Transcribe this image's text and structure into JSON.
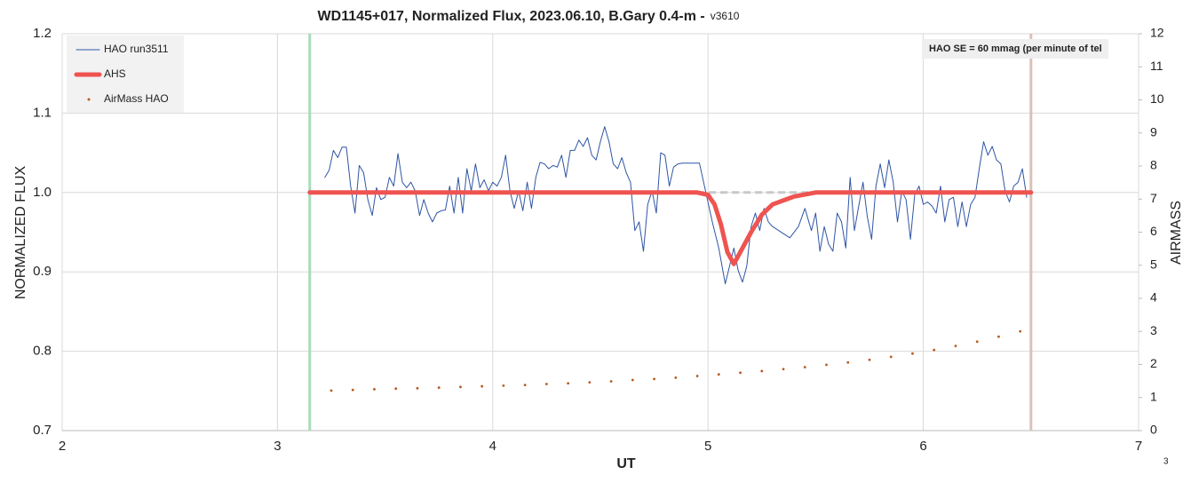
{
  "chart_data": {
    "type": "line",
    "title": "WD1145+017, Normalized Flux, 2023.06.10, B.Gary 0.4-m -",
    "version": "v3610",
    "x_label": "UT",
    "y_label": "NORMALIZED FLUX",
    "y2_label": "AIRMASS",
    "annotation": "HAO SE = 60 mmag (per minute of tel",
    "page_number": "3",
    "xlim": [
      2,
      7
    ],
    "xticks": [
      2,
      3,
      4,
      5,
      6,
      7
    ],
    "ylim": [
      0.7,
      1.2
    ],
    "yticks": [
      0.7,
      0.8,
      0.9,
      {
        "value": 1,
        "label": "1.0"
      },
      1.1,
      1.2
    ],
    "y2lim": [
      0,
      12
    ],
    "y2ticks": [
      0,
      1,
      2,
      3,
      4,
      5,
      6,
      7,
      8,
      9,
      10,
      11,
      12
    ],
    "grid": true,
    "legend": "top-left",
    "vlines": [
      {
        "x": 3.15,
        "color": "#a9dbbb"
      },
      {
        "x": 6.5,
        "color": "#dcc0b8"
      }
    ],
    "reference_line": {
      "x": [
        4.95,
        5.55
      ],
      "y": [
        1,
        1
      ],
      "color": "#c8c8c8"
    },
    "series": [
      {
        "name": "HAO run3511",
        "color": "#2f55a4",
        "style": "line",
        "width": 1,
        "x": [
          3.22,
          3.24,
          3.26,
          3.28,
          3.3,
          3.32,
          3.34,
          3.36,
          3.38,
          3.4,
          3.42,
          3.44,
          3.46,
          3.48,
          3.5,
          3.52,
          3.54,
          3.56,
          3.58,
          3.6,
          3.62,
          3.64,
          3.66,
          3.68,
          3.7,
          3.72,
          3.74,
          3.76,
          3.78,
          3.8,
          3.82,
          3.84,
          3.86,
          3.88,
          3.9,
          3.92,
          3.94,
          3.96,
          3.98,
          4.0,
          4.02,
          4.04,
          4.06,
          4.08,
          4.1,
          4.12,
          4.14,
          4.16,
          4.18,
          4.2,
          4.22,
          4.24,
          4.26,
          4.28,
          4.3,
          4.32,
          4.34,
          4.36,
          4.38,
          4.4,
          4.42,
          4.44,
          4.46,
          4.48,
          4.5,
          4.52,
          4.54,
          4.56,
          4.58,
          4.6,
          4.62,
          4.64,
          4.66,
          4.68,
          4.7,
          4.72,
          4.74,
          4.76,
          4.78,
          4.8,
          4.82,
          4.84,
          4.86,
          4.88,
          4.9,
          4.92,
          4.94,
          4.96,
          5.02,
          5.05,
          5.08,
          5.1,
          5.12,
          5.14,
          5.16,
          5.18,
          5.2,
          5.22,
          5.24,
          5.26,
          5.28,
          5.3,
          5.38,
          5.42,
          5.45,
          5.48,
          5.5,
          5.52,
          5.54,
          5.56,
          5.58,
          5.6,
          5.62,
          5.64,
          5.66,
          5.68,
          5.7,
          5.72,
          5.74,
          5.76,
          5.78,
          5.8,
          5.82,
          5.84,
          5.86,
          5.88,
          5.9,
          5.92,
          5.94,
          5.96,
          5.98,
          6.0,
          6.02,
          6.04,
          6.06,
          6.08,
          6.1,
          6.12,
          6.14,
          6.16,
          6.18,
          6.2,
          6.22,
          6.24,
          6.26,
          6.28,
          6.3,
          6.32,
          6.34,
          6.36,
          6.38,
          6.4,
          6.42,
          6.44,
          6.46,
          6.48
        ],
        "values": [
          1.019,
          1.028,
          1.053,
          1.044,
          1.057,
          1.057,
          1.008,
          0.974,
          1.034,
          1.025,
          0.991,
          0.971,
          1.006,
          0.991,
          0.994,
          1.019,
          1.008,
          1.049,
          1.013,
          1.006,
          1.013,
          1.002,
          0.971,
          0.991,
          0.974,
          0.963,
          0.974,
          0.977,
          0.978,
          1.008,
          0.974,
          1.019,
          0.974,
          1.03,
          1.002,
          1.036,
          1.006,
          1.016,
          1.002,
          1.013,
          1.008,
          1.019,
          1.047,
          1.002,
          0.98,
          1.002,
          0.977,
          1.013,
          0.98,
          1.019,
          1.038,
          1.036,
          1.03,
          1.034,
          1.032,
          1.047,
          1.019,
          1.053,
          1.053,
          1.066,
          1.058,
          1.069,
          1.047,
          1.041,
          1.064,
          1.083,
          1.064,
          1.036,
          1.03,
          1.044,
          1.025,
          1.013,
          0.952,
          0.963,
          0.926,
          0.985,
          1.002,
          0.974,
          1.05,
          1.047,
          1.008,
          1.032,
          1.036,
          1.037,
          1.037,
          1.037,
          1.037,
          1.037,
          0.963,
          0.93,
          0.885,
          0.907,
          0.93,
          0.902,
          0.887,
          0.907,
          0.957,
          0.974,
          0.952,
          0.98,
          0.963,
          0.957,
          0.943,
          0.957,
          0.98,
          0.952,
          0.974,
          0.926,
          0.957,
          0.935,
          0.926,
          0.974,
          0.963,
          0.93,
          1.019,
          0.952,
          0.983,
          1.013,
          0.969,
          0.941,
          1.008,
          1.036,
          1.006,
          1.041,
          1.013,
          0.963,
          1.002,
          0.991,
          0.941,
          0.997,
          1.008,
          0.985,
          0.988,
          0.983,
          0.974,
          1.008,
          0.963,
          0.991,
          0.994,
          0.957,
          0.988,
          0.957,
          0.985,
          0.994,
          1.03,
          1.064,
          1.047,
          1.058,
          1.041,
          1.036,
          1.002,
          0.988,
          1.008,
          1.013,
          1.03,
          0.994
        ]
      },
      {
        "name": "AHS",
        "color": "#ef5350",
        "style": "line",
        "width": 5,
        "x": [
          3.15,
          4.95,
          5.0,
          5.03,
          5.06,
          5.09,
          5.12,
          5.15,
          5.2,
          5.25,
          5.3,
          5.4,
          5.5,
          6.5
        ],
        "values": [
          1,
          1,
          0.997,
          0.985,
          0.96,
          0.925,
          0.91,
          0.925,
          0.95,
          0.972,
          0.985,
          0.995,
          1,
          1
        ]
      },
      {
        "name": "AirMass HAO",
        "color": "#b85a1e",
        "style": "dots",
        "axis": "y2",
        "x": [
          3.25,
          3.35,
          3.45,
          3.55,
          3.65,
          3.75,
          3.85,
          3.95,
          4.05,
          4.15,
          4.25,
          4.35,
          4.45,
          4.55,
          4.65,
          4.75,
          4.85,
          4.95,
          5.05,
          5.15,
          5.25,
          5.35,
          5.45,
          5.55,
          5.65,
          5.75,
          5.85,
          5.95,
          6.05,
          6.15,
          6.25,
          6.35,
          6.45
        ],
        "values": [
          1.21,
          1.23,
          1.25,
          1.27,
          1.28,
          1.3,
          1.32,
          1.34,
          1.36,
          1.38,
          1.41,
          1.43,
          1.46,
          1.49,
          1.53,
          1.56,
          1.6,
          1.65,
          1.7,
          1.75,
          1.8,
          1.86,
          1.92,
          1.99,
          2.06,
          2.14,
          2.23,
          2.33,
          2.44,
          2.56,
          2.69,
          2.84,
          3.0
        ]
      }
    ]
  }
}
